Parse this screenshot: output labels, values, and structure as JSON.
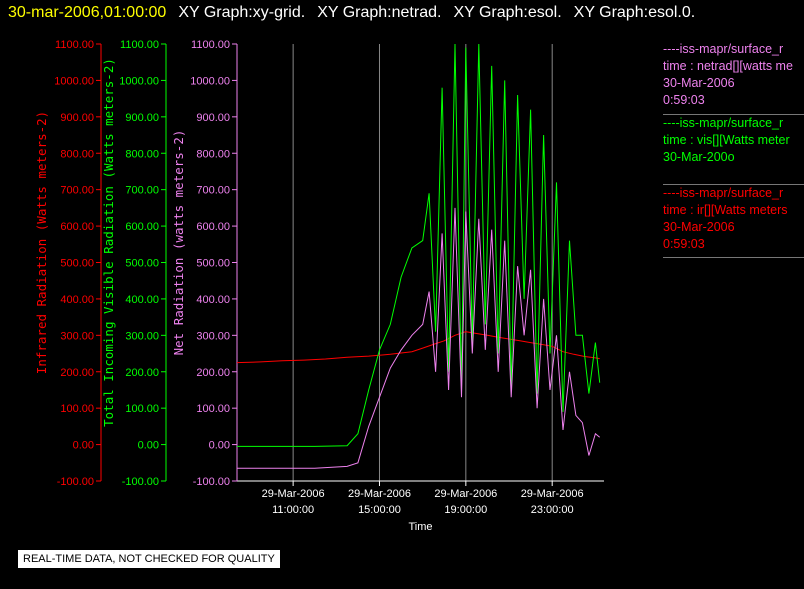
{
  "header": {
    "timestamp": "30-mar-2006,01:00:00",
    "titles": [
      "XY Graph:xy-grid.",
      "XY Graph:netrad.",
      "XY Graph:esol.",
      "XY Graph:esol.0."
    ]
  },
  "colors": {
    "ir": "#ff0000",
    "vis": "#00ff00",
    "net": "#ee82ee",
    "axis": "#ffffff",
    "grid": "#888888"
  },
  "legend": [
    {
      "line1": "----iss-mapr/surface_r",
      "line2": "time : netrad[][watts me",
      "line3": "30-Mar-2006",
      "line4": "0:59:03",
      "color": "#ee82ee"
    },
    {
      "line1": "----iss-mapr/surface_r",
      "line2": "time : vis[][Watts meter",
      "line3": "30-Mar-200o",
      "line4": "",
      "color": "#00ff00"
    },
    {
      "line1": "----iss-mapr/surface_r",
      "line2": "time : ir[][Watts meters",
      "line3": "30-Mar-2006",
      "line4": "0:59:03",
      "color": "#ff0000"
    }
  ],
  "footer": "REAL-TIME DATA, NOT CHECKED FOR QUALITY",
  "chart_data": {
    "type": "line",
    "xlabel": "Time",
    "x_ticks": [
      {
        "line1": "29-Mar-2006",
        "line2": "11:00:00",
        "hour": 11
      },
      {
        "line1": "29-Mar-2006",
        "line2": "15:00:00",
        "hour": 15
      },
      {
        "line1": "29-Mar-2006",
        "line2": "19:00:00",
        "hour": 19
      },
      {
        "line1": "29-Mar-2006",
        "line2": "23:00:00",
        "hour": 23
      }
    ],
    "xlim_hours": [
      8.4,
      25.4
    ],
    "ylim": [
      -100,
      1100
    ],
    "y_ticks": [
      "-100.00",
      "0.00",
      "100.00",
      "200.00",
      "300.00",
      "400.00",
      "500.00",
      "600.00",
      "700.00",
      "800.00",
      "900.00",
      "1000.00",
      "1100.00"
    ],
    "y_axes": [
      {
        "label": "Infrared Radiation (Watts meters-2)",
        "color": "#ff0000"
      },
      {
        "label": "Total Incoming Visible Radiation (Watts meters-2)",
        "color": "#00ff00"
      },
      {
        "label": "Net Radiation (watts meters-2)",
        "color": "#ee82ee"
      }
    ],
    "grid": true,
    "series": [
      {
        "color": "#ff0000",
        "x": [
          8.4,
          9.5,
          10.5,
          11.5,
          12.5,
          13.5,
          14.5,
          15.5,
          16.5,
          17.0,
          17.5,
          18.0,
          18.5,
          19.0,
          19.5,
          20.0,
          20.5,
          21.0,
          21.5,
          22.0,
          22.5,
          23.0,
          23.5,
          24.0,
          24.5,
          25.0,
          25.2
        ],
        "y": [
          225,
          227,
          230,
          232,
          235,
          240,
          243,
          248,
          255,
          265,
          275,
          285,
          300,
          310,
          305,
          300,
          295,
          290,
          285,
          280,
          275,
          270,
          255,
          248,
          242,
          238,
          236
        ]
      },
      {
        "color": "#00ff00",
        "x": [
          8.4,
          10.0,
          12.0,
          13.5,
          14.0,
          14.5,
          15.0,
          15.5,
          16.0,
          16.5,
          17.0,
          17.3,
          17.6,
          17.9,
          18.2,
          18.5,
          18.8,
          19.0,
          19.3,
          19.6,
          19.9,
          20.2,
          20.5,
          20.8,
          21.1,
          21.4,
          21.7,
          22.0,
          22.3,
          22.6,
          22.9,
          23.2,
          23.5,
          23.8,
          24.1,
          24.4,
          24.7,
          25.0,
          25.2
        ],
        "y": [
          -5,
          -5,
          -5,
          -3,
          30,
          150,
          260,
          330,
          460,
          540,
          560,
          690,
          310,
          980,
          200,
          1100,
          150,
          1090,
          280,
          1100,
          330,
          1040,
          250,
          1000,
          150,
          960,
          400,
          920,
          140,
          850,
          250,
          720,
          90,
          560,
          300,
          300,
          140,
          280,
          170
        ]
      },
      {
        "color": "#ee82ee",
        "x": [
          8.4,
          10.0,
          12.0,
          13.5,
          14.0,
          14.5,
          15.0,
          15.5,
          16.0,
          16.5,
          17.0,
          17.3,
          17.6,
          17.9,
          18.2,
          18.5,
          18.8,
          19.0,
          19.3,
          19.6,
          19.9,
          20.2,
          20.5,
          20.8,
          21.1,
          21.4,
          21.7,
          22.0,
          22.3,
          22.6,
          22.9,
          23.2,
          23.5,
          23.8,
          24.1,
          24.4,
          24.7,
          25.0,
          25.2
        ],
        "y": [
          -65,
          -65,
          -65,
          -60,
          -50,
          50,
          130,
          210,
          260,
          300,
          330,
          420,
          200,
          580,
          150,
          650,
          130,
          640,
          250,
          620,
          260,
          590,
          200,
          560,
          130,
          490,
          300,
          480,
          100,
          400,
          150,
          300,
          40,
          200,
          80,
          60,
          -30,
          30,
          20
        ]
      }
    ]
  }
}
